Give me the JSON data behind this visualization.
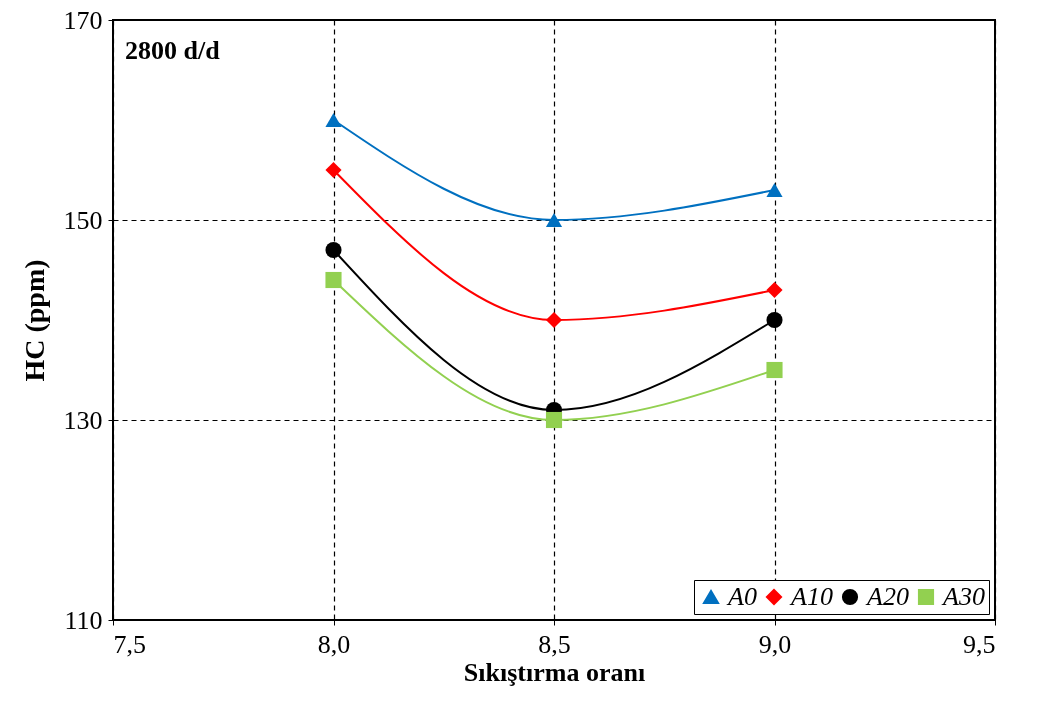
{
  "chart_data": {
    "type": "line",
    "xlabel": "Sıkıştırma oranı",
    "ylabel": "HC (ppm)",
    "annotations": [
      "2800 d/d"
    ],
    "x": [
      8.0,
      8.5,
      9.0
    ],
    "series": [
      {
        "name": "A0",
        "color": "#0070c0",
        "marker": "triangle",
        "values": [
          160,
          150,
          153
        ]
      },
      {
        "name": "A10",
        "color": "#ff0000",
        "marker": "diamond",
        "values": [
          155,
          140,
          143
        ]
      },
      {
        "name": "A20",
        "color": "#000000",
        "marker": "circle",
        "values": [
          147,
          131,
          140
        ]
      },
      {
        "name": "A30",
        "color": "#92d050",
        "marker": "square",
        "values": [
          144,
          130,
          135
        ]
      }
    ],
    "xlim": [
      7.5,
      9.5
    ],
    "xticks": [
      {
        "value": 7.5,
        "label": "7,5"
      },
      {
        "value": 8.0,
        "label": "8,0"
      },
      {
        "value": 8.5,
        "label": "8,5"
      },
      {
        "value": 9.0,
        "label": "9,0"
      },
      {
        "value": 9.5,
        "label": "9,5"
      }
    ],
    "ylim": [
      110,
      170
    ],
    "yticks": [
      110,
      130,
      150,
      170
    ],
    "grid": true,
    "legend": "bottom right",
    "line_style": "solid"
  }
}
